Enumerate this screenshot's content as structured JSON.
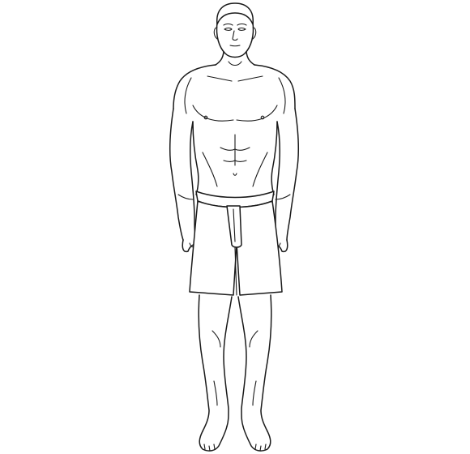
{
  "illustration": {
    "subject": "standing-male-figure-line-drawing",
    "colors": {
      "background": "#ffffff",
      "line": "#1a1a1a"
    }
  }
}
